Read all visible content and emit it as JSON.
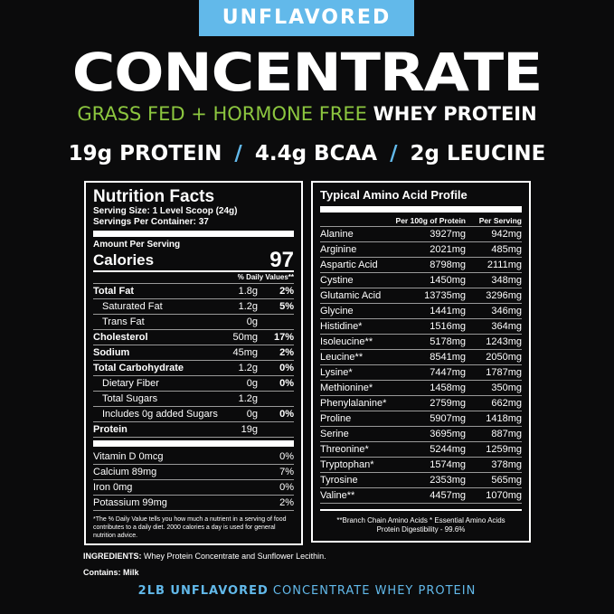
{
  "banner": "UNFLAVORED",
  "title": "CONCENTRATE",
  "subtitle": {
    "green": "GRASS FED + HORMONE FREE",
    "white": "WHEY PROTEIN"
  },
  "stats": [
    "19g PROTEIN",
    "4.4g BCAA",
    "2g LEUCINE"
  ],
  "stats_sep": "/",
  "colors": {
    "accent_blue": "#62b9ea",
    "green": "#8cc63f",
    "background": "#0b0b0c"
  },
  "nutrition": {
    "title": "Nutrition Facts",
    "serving_size": "Serving Size: 1 Level Scoop (24g)",
    "servings": "Servings Per Container: 37",
    "amount_label": "Amount Per Serving",
    "calories_label": "Calories",
    "calories": "97",
    "dv_header": "% Daily Values**",
    "rows": [
      {
        "label": "Total Fat",
        "amount": "1.8g",
        "dv": "2%"
      },
      {
        "label": "Saturated Fat",
        "amount": "1.2g",
        "dv": "5%"
      },
      {
        "label": "Trans Fat",
        "amount": "0g",
        "dv": ""
      },
      {
        "label": "Cholesterol",
        "amount": "50mg",
        "dv": "17%"
      },
      {
        "label": "Sodium",
        "amount": "45mg",
        "dv": "2%"
      },
      {
        "label": "Total Carbohydrate",
        "amount": "1.2g",
        "dv": "0%"
      },
      {
        "label": "Dietary Fiber",
        "amount": "0g",
        "dv": "0%"
      },
      {
        "label": "Total Sugars",
        "amount": "1.2g",
        "dv": ""
      },
      {
        "label": "Includes 0g added Sugars",
        "amount": "0g",
        "dv": "0%"
      },
      {
        "label": "Protein",
        "amount": "19g",
        "dv": ""
      }
    ],
    "vitamins": [
      {
        "label": "Vitamin D 0mcg",
        "dv": "0%"
      },
      {
        "label": "Calcium 89mg",
        "dv": "7%"
      },
      {
        "label": "Iron 0mg",
        "dv": "0%"
      },
      {
        "label": "Potassium 99mg",
        "dv": "2%"
      }
    ],
    "footnote": "*The % Daily Value tells you how much a nutrient in a serving of food contributes to a daily diet. 2000 calories a day is used for general nutrition advice."
  },
  "amino": {
    "title": "Typical Amino Acid Profile",
    "col1": "Per 100g of Protein",
    "col2": "Per Serving",
    "rows": [
      [
        "Alanine",
        "3927mg",
        "942mg"
      ],
      [
        "Arginine",
        "2021mg",
        "485mg"
      ],
      [
        "Aspartic Acid",
        "8798mg",
        "2111mg"
      ],
      [
        "Cystine",
        "1450mg",
        "348mg"
      ],
      [
        "Glutamic Acid",
        "13735mg",
        "3296mg"
      ],
      [
        "Glycine",
        "1441mg",
        "346mg"
      ],
      [
        "Histidine*",
        "1516mg",
        "364mg"
      ],
      [
        "Isoleucine**",
        "5178mg",
        "1243mg"
      ],
      [
        "Leucine**",
        "8541mg",
        "2050mg"
      ],
      [
        "Lysine*",
        "7447mg",
        "1787mg"
      ],
      [
        "Methionine*",
        "1458mg",
        "350mg"
      ],
      [
        "Phenylalanine*",
        "2759mg",
        "662mg"
      ],
      [
        "Proline",
        "5907mg",
        "1418mg"
      ],
      [
        "Serine",
        "3695mg",
        "887mg"
      ],
      [
        "Threonine*",
        "5244mg",
        "1259mg"
      ],
      [
        "Tryptophan*",
        "1574mg",
        "378mg"
      ],
      [
        "Tyrosine",
        "2353mg",
        "565mg"
      ],
      [
        "Valine**",
        "4457mg",
        "1070mg"
      ]
    ],
    "footnote1": "**Branch Chain Amino Acids    * Essential Amino Acids",
    "footnote2": "Protein Digestibility - 99.6%"
  },
  "ingredients_label": "INGREDIENTS:",
  "ingredients": " Whey Protein Concentrate and Sunflower Lecithin.",
  "contains": "Contains: Milk",
  "bottom": {
    "bold": "2LB UNFLAVORED",
    "rest": " CONCENTRATE WHEY PROTEIN"
  }
}
